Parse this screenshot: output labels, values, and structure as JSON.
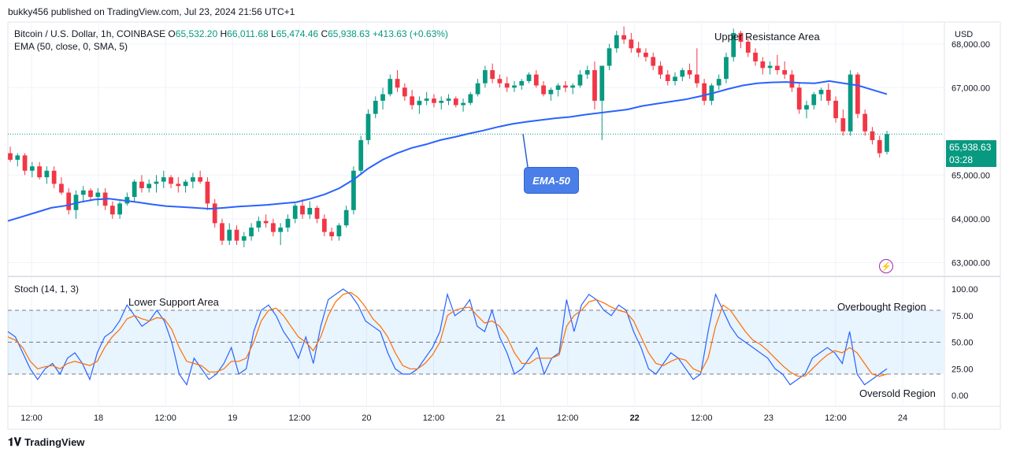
{
  "publisher_line": "bukky456 published on TradingView.com, Jul 23, 2024 21:56 UTC+1",
  "symbol_line": "Bitcoin / U.S. Dollar, 1h, COINBASE",
  "ohlc": {
    "o_label": "O",
    "o": "65,532.20",
    "h_label": "H",
    "h": "66,011.68",
    "l_label": "L",
    "l": "65,474.46",
    "c_label": "C",
    "c": "65,938.63",
    "change": "+413.63 (+0.63%)"
  },
  "ema_line": "EMA (50, close, 0, SMA, 5)",
  "stoch_line": "Stoch (14, 1, 3)",
  "currency": "USD",
  "current_price": "65,938.63",
  "countdown": "03:28",
  "annotations": {
    "upper_resistance": "Upper Resistance Area",
    "lower_support": "Lower Support Area",
    "overbought": "Overbought Region",
    "oversold": "Oversold Region",
    "ema_callout": "EMA-50"
  },
  "footer_brand": "TradingView",
  "colors": {
    "up": "#089981",
    "down": "#f23645",
    "ema": "#2962ff",
    "stoch_k": "#2962ff",
    "stoch_d": "#ff6d00",
    "band": "#2196f3"
  },
  "icons": {
    "footer_logo": "tradingview-logo-icon",
    "replay": "lightning-icon"
  },
  "chart_data": [
    {
      "type": "candlestick",
      "title": "",
      "y_ticks": [
        "68,000.00",
        "67,000.00",
        "65,000.00",
        "64,000.00",
        "63,000.00"
      ],
      "ylim": [
        62700,
        68500
      ],
      "x_ticks": [
        "12:00",
        "18",
        "12:00",
        "19",
        "12:00",
        "20",
        "12:00",
        "21",
        "12:00",
        "22",
        "12:00",
        "23",
        "12:00",
        "24"
      ],
      "ohlc_series": [
        [
          65500,
          65650,
          65300,
          65350
        ],
        [
          65350,
          65500,
          65200,
          65450
        ],
        [
          65450,
          65500,
          65000,
          65100
        ],
        [
          65100,
          65300,
          64950,
          65200
        ],
        [
          65200,
          65300,
          64900,
          64950
        ],
        [
          64950,
          65200,
          64800,
          65100
        ],
        [
          65100,
          65200,
          64700,
          64800
        ],
        [
          64800,
          64950,
          64550,
          64600
        ],
        [
          64600,
          64700,
          64100,
          64200
        ],
        [
          64200,
          64650,
          64000,
          64550
        ],
        [
          64550,
          64750,
          64400,
          64650
        ],
        [
          64650,
          64700,
          64400,
          64500
        ],
        [
          64500,
          64700,
          64300,
          64600
        ],
        [
          64600,
          64700,
          64200,
          64300
        ],
        [
          64300,
          64400,
          64000,
          64100
        ],
        [
          64100,
          64400,
          64000,
          64350
        ],
        [
          64350,
          64600,
          64300,
          64500
        ],
        [
          64500,
          64900,
          64400,
          64850
        ],
        [
          64850,
          65000,
          64600,
          64700
        ],
        [
          64700,
          64900,
          64600,
          64800
        ],
        [
          64800,
          65000,
          64600,
          64850
        ],
        [
          64850,
          65100,
          64700,
          64950
        ],
        [
          64950,
          65000,
          64700,
          64800
        ],
        [
          64800,
          64950,
          64600,
          64750
        ],
        [
          64750,
          64900,
          64600,
          64850
        ],
        [
          64850,
          65050,
          64700,
          64950
        ],
        [
          64950,
          65100,
          64800,
          64850
        ],
        [
          64850,
          64950,
          64200,
          64350
        ],
        [
          64350,
          64450,
          63800,
          63900
        ],
        [
          63900,
          64000,
          63400,
          63500
        ],
        [
          63500,
          63900,
          63400,
          63750
        ],
        [
          63750,
          63850,
          63400,
          63500
        ],
        [
          63500,
          63700,
          63350,
          63600
        ],
        [
          63600,
          63900,
          63500,
          63800
        ],
        [
          63800,
          64050,
          63700,
          63950
        ],
        [
          63950,
          64100,
          63800,
          63900
        ],
        [
          63900,
          64000,
          63600,
          63700
        ],
        [
          63700,
          63900,
          63400,
          63800
        ],
        [
          63800,
          64100,
          63700,
          64000
        ],
        [
          64000,
          64350,
          63900,
          64300
        ],
        [
          64300,
          64450,
          64000,
          64100
        ],
        [
          64100,
          64400,
          64000,
          64250
        ],
        [
          64250,
          64300,
          63900,
          64000
        ],
        [
          64000,
          64100,
          63600,
          63700
        ],
        [
          63700,
          63800,
          63500,
          63600
        ],
        [
          63600,
          63900,
          63500,
          63850
        ],
        [
          63850,
          64300,
          63800,
          64200
        ],
        [
          64200,
          65200,
          64100,
          65100
        ],
        [
          65100,
          65900,
          65000,
          65800
        ],
        [
          65800,
          66500,
          65700,
          66400
        ],
        [
          66400,
          66800,
          66300,
          66700
        ],
        [
          66700,
          67000,
          66500,
          66850
        ],
        [
          66850,
          67300,
          66800,
          67200
        ],
        [
          67200,
          67400,
          66900,
          67000
        ],
        [
          67000,
          67100,
          66700,
          66800
        ],
        [
          66800,
          66950,
          66500,
          66600
        ],
        [
          66600,
          66800,
          66400,
          66700
        ],
        [
          66700,
          66900,
          66600,
          66750
        ],
        [
          66750,
          66850,
          66550,
          66650
        ],
        [
          66650,
          66800,
          66500,
          66700
        ],
        [
          66700,
          66850,
          66600,
          66750
        ],
        [
          66750,
          66800,
          66550,
          66600
        ],
        [
          66600,
          66750,
          66450,
          66650
        ],
        [
          66650,
          66900,
          66600,
          66850
        ],
        [
          66850,
          67200,
          66800,
          67100
        ],
        [
          67100,
          67500,
          67000,
          67400
        ],
        [
          67400,
          67550,
          67100,
          67200
        ],
        [
          67200,
          67300,
          67000,
          67100
        ],
        [
          67100,
          67250,
          66900,
          67000
        ],
        [
          67000,
          67150,
          66900,
          67050
        ],
        [
          67050,
          67200,
          66950,
          67150
        ],
        [
          67150,
          67350,
          67100,
          67300
        ],
        [
          67300,
          67400,
          67000,
          67050
        ],
        [
          67050,
          67150,
          66800,
          66850
        ],
        [
          66850,
          67000,
          66700,
          66950
        ],
        [
          66950,
          67100,
          66800,
          67050
        ],
        [
          67050,
          67150,
          66900,
          67000
        ],
        [
          67000,
          67100,
          66850,
          67050
        ],
        [
          67050,
          67400,
          67000,
          67300
        ],
        [
          67300,
          67500,
          67200,
          67400
        ],
        [
          67400,
          67600,
          66500,
          66700
        ],
        [
          66700,
          66900,
          65800,
          67500
        ],
        [
          67500,
          68000,
          67400,
          67900
        ],
        [
          67900,
          68300,
          67800,
          68200
        ],
        [
          68200,
          68400,
          68000,
          68100
        ],
        [
          68100,
          68250,
          67800,
          67900
        ],
        [
          67900,
          68050,
          67700,
          67800
        ],
        [
          67800,
          67900,
          67600,
          67700
        ],
        [
          67700,
          67800,
          67400,
          67500
        ],
        [
          67500,
          67600,
          67200,
          67300
        ],
        [
          67300,
          67400,
          67050,
          67150
        ],
        [
          67150,
          67350,
          67050,
          67250
        ],
        [
          67250,
          67450,
          67150,
          67400
        ],
        [
          67400,
          67550,
          67200,
          67300
        ],
        [
          67300,
          67900,
          67000,
          67100
        ],
        [
          67100,
          67200,
          66600,
          66700
        ],
        [
          66700,
          67100,
          66600,
          67050
        ],
        [
          67050,
          67300,
          66950,
          67200
        ],
        [
          67200,
          67800,
          67100,
          67700
        ],
        [
          67700,
          68350,
          67600,
          68250
        ],
        [
          68250,
          68300,
          67900,
          68050
        ],
        [
          68050,
          68150,
          67700,
          67800
        ],
        [
          67800,
          67900,
          67500,
          67600
        ],
        [
          67600,
          67700,
          67300,
          67450
        ],
        [
          67450,
          67600,
          67300,
          67500
        ],
        [
          67500,
          67750,
          67300,
          67400
        ],
        [
          67400,
          67600,
          67200,
          67300
        ],
        [
          67300,
          67400,
          66900,
          67000
        ],
        [
          67000,
          67100,
          66400,
          66500
        ],
        [
          66500,
          66700,
          66300,
          66600
        ],
        [
          66600,
          66900,
          66500,
          66850
        ],
        [
          66850,
          67000,
          66700,
          66950
        ],
        [
          66950,
          67100,
          66600,
          66700
        ],
        [
          66700,
          66800,
          66200,
          66300
        ],
        [
          66300,
          66500,
          65900,
          66000
        ],
        [
          66000,
          67400,
          65900,
          67300
        ],
        [
          67300,
          67350,
          66300,
          66400
        ],
        [
          66400,
          66500,
          65900,
          66000
        ],
        [
          66000,
          66100,
          65700,
          65800
        ],
        [
          65800,
          65900,
          65400,
          65500
        ],
        [
          65532.2,
          66011.68,
          65474.46,
          65938.63
        ]
      ],
      "ema50": [
        63950,
        64050,
        64150,
        64250,
        64300,
        64380,
        64440,
        64460,
        64420,
        64380,
        64330,
        64290,
        64270,
        64250,
        64230,
        64250,
        64280,
        64300,
        64320,
        64350,
        64380,
        64460,
        64560,
        64700,
        64900,
        65150,
        65350,
        65500,
        65620,
        65700,
        65800,
        65870,
        65950,
        66020,
        66100,
        66170,
        66220,
        66260,
        66300,
        66330,
        66380,
        66420,
        66460,
        66500,
        66580,
        66630,
        66680,
        66730,
        66800,
        66880,
        66970,
        67050,
        67100,
        67120,
        67130,
        67110,
        67100,
        67150,
        67100,
        67050,
        66950,
        66850
      ],
      "ema_label": "EMA (50, close, 0, SMA, 5)"
    },
    {
      "type": "line",
      "title": "Stoch (14, 1, 3)",
      "y_ticks": [
        "100.00",
        "75.00",
        "50.00",
        "25.00",
        "0.00"
      ],
      "ylim": [
        0,
        100
      ],
      "bands": {
        "upper": 80,
        "middle": 50,
        "lower": 20
      },
      "series": [
        {
          "values": [
            60,
            55,
            40,
            25,
            15,
            25,
            30,
            20,
            35,
            40,
            30,
            15,
            40,
            55,
            60,
            70,
            85,
            75,
            65,
            70,
            80,
            70,
            50,
            20,
            10,
            35,
            25,
            15,
            20,
            30,
            45,
            20,
            25,
            60,
            80,
            85,
            75,
            60,
            50,
            35,
            55,
            30,
            65,
            90,
            95,
            100,
            95,
            85,
            70,
            65,
            60,
            40,
            25,
            20,
            20,
            25,
            35,
            45,
            60,
            95,
            75,
            80,
            90,
            65,
            60,
            80,
            55,
            40,
            20,
            25,
            35,
            45,
            20,
            35,
            40,
            90,
            60,
            85,
            95,
            90,
            80,
            75,
            85,
            80,
            60,
            45,
            25,
            20,
            30,
            40,
            35,
            25,
            15,
            20,
            60,
            95,
            80,
            65,
            55,
            50,
            45,
            40,
            35,
            25,
            20,
            10,
            15,
            20,
            35,
            40,
            45,
            40,
            30,
            60,
            20,
            10,
            15,
            20,
            25
          ]
        },
        {
          "values": [
            55,
            52,
            45,
            32,
            25,
            27,
            28,
            25,
            30,
            32,
            30,
            28,
            32,
            45,
            55,
            62,
            72,
            75,
            72,
            70,
            73,
            72,
            62,
            45,
            32,
            30,
            28,
            22,
            22,
            25,
            32,
            32,
            35,
            50,
            70,
            80,
            82,
            75,
            65,
            55,
            50,
            42,
            55,
            75,
            88,
            95,
            97,
            92,
            83,
            72,
            65,
            55,
            40,
            28,
            25,
            25,
            30,
            38,
            50,
            75,
            80,
            82,
            83,
            75,
            68,
            70,
            65,
            55,
            40,
            30,
            30,
            35,
            35,
            35,
            38,
            65,
            75,
            80,
            88,
            90,
            87,
            83,
            80,
            78,
            70,
            55,
            40,
            30,
            28,
            32,
            35,
            33,
            25,
            22,
            35,
            65,
            85,
            80,
            70,
            60,
            52,
            48,
            42,
            35,
            28,
            22,
            18,
            18,
            25,
            32,
            38,
            42,
            40,
            45,
            40,
            30,
            20,
            18,
            20
          ]
        }
      ]
    }
  ]
}
